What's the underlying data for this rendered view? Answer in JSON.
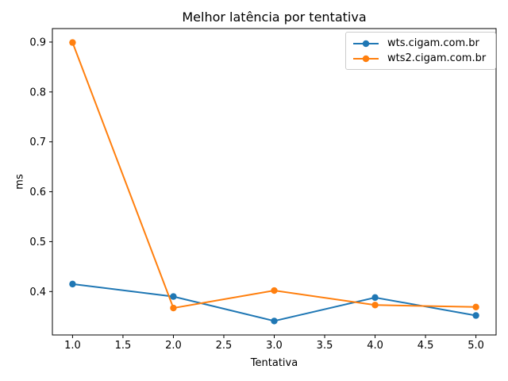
{
  "chart_data": {
    "type": "line",
    "title": "Melhor latência por tentativa",
    "xlabel": "Tentativa",
    "ylabel": "ms",
    "x": [
      1,
      2,
      3,
      4,
      5
    ],
    "series": [
      {
        "name": "wts.cigam.com.br",
        "color": "#1f77b4",
        "values": [
          0.415,
          0.39,
          0.341,
          0.388,
          0.352
        ]
      },
      {
        "name": "wts2.cigam.com.br",
        "color": "#ff7f0e",
        "values": [
          0.899,
          0.367,
          0.402,
          0.373,
          0.369
        ]
      }
    ],
    "xticks": [
      1.0,
      1.5,
      2.0,
      2.5,
      3.0,
      3.5,
      4.0,
      4.5,
      5.0
    ],
    "yticks": [
      0.4,
      0.5,
      0.6,
      0.7,
      0.8,
      0.9
    ],
    "xlim": [
      0.8,
      5.2
    ],
    "ylim": [
      0.313,
      0.927
    ],
    "grid": false,
    "legend_position": "upper right",
    "marker": "o",
    "background": "#ffffff",
    "spine_color": "#000000"
  }
}
